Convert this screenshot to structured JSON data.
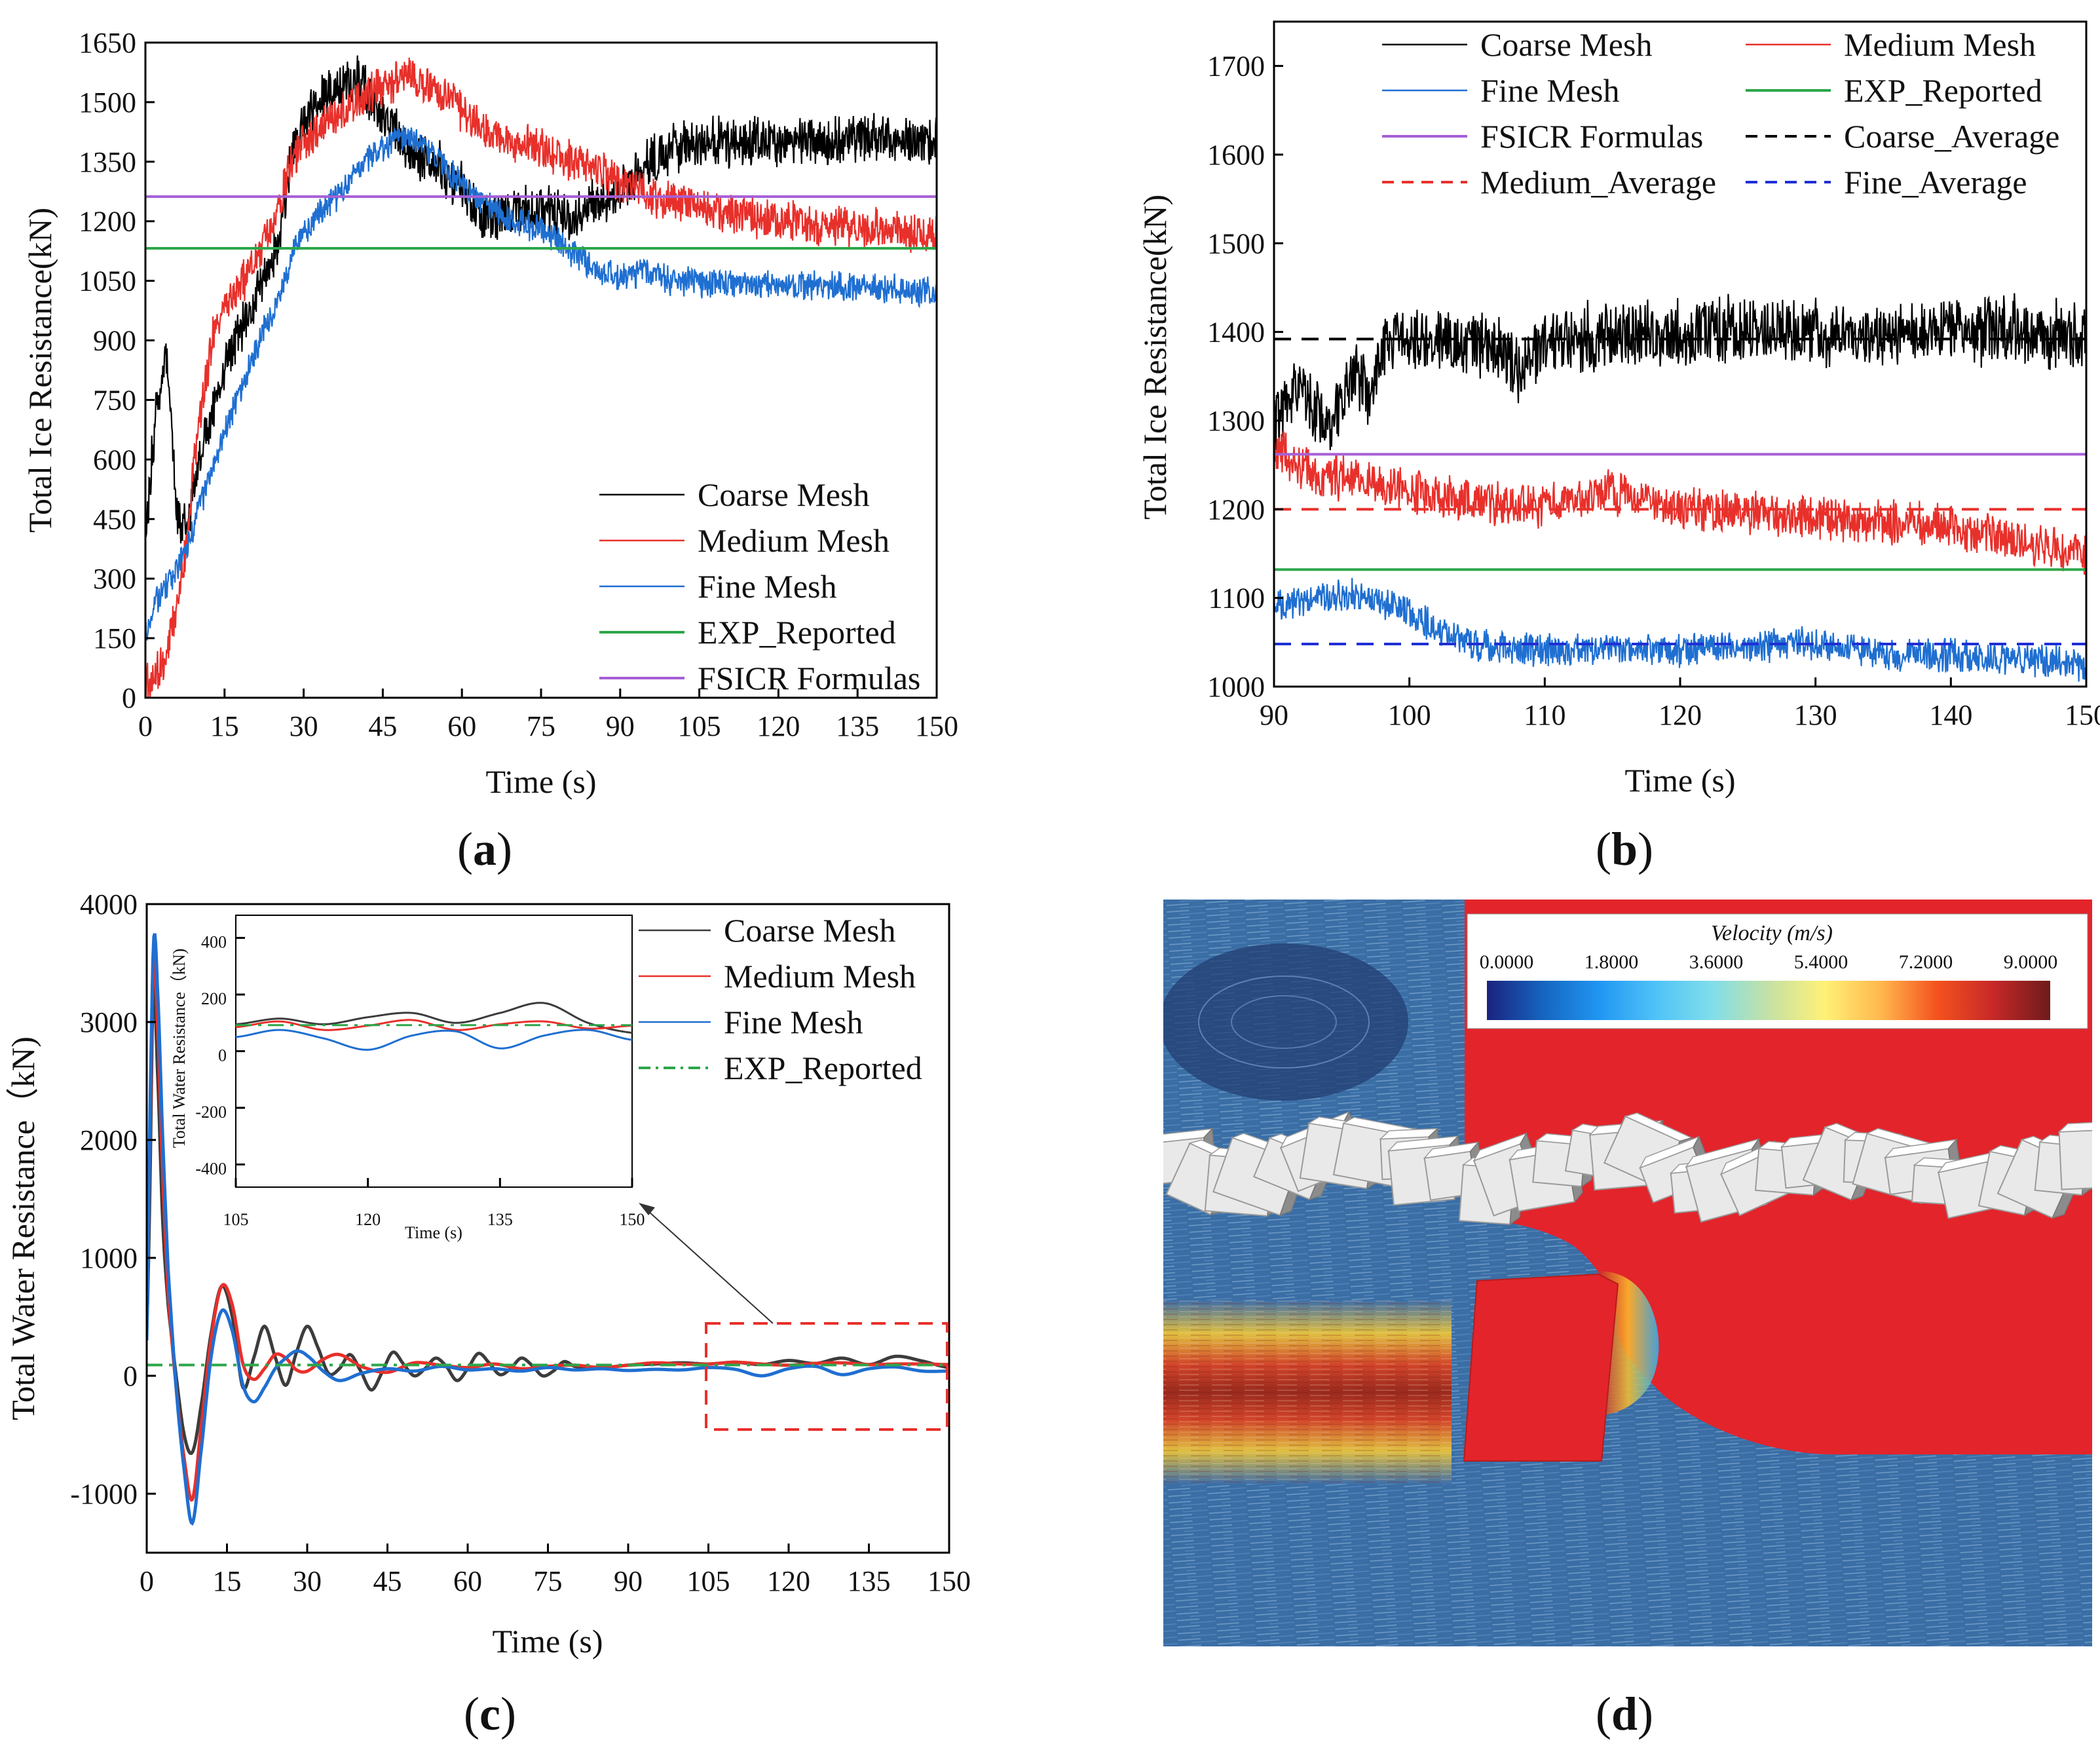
{
  "chart_data": [
    {
      "panel": "(a)",
      "type": "line",
      "xlabel": "Time (s)",
      "ylabel": "Total Ice Resistance(kN)",
      "xlim": [
        0,
        150
      ],
      "ylim": [
        0,
        1650
      ],
      "xticks": [
        0,
        15,
        30,
        45,
        60,
        75,
        90,
        105,
        120,
        135,
        150
      ],
      "yticks": [
        0,
        150,
        300,
        450,
        600,
        750,
        900,
        1050,
        1200,
        1350,
        1500,
        1650
      ],
      "legend_position": "bottom-right",
      "series": [
        {
          "name": "Coarse Mesh",
          "color": "#000000",
          "noise": 55,
          "x": [
            0,
            2,
            4,
            6,
            8,
            10,
            13,
            16,
            20,
            25,
            28,
            32,
            36,
            40,
            45,
            50,
            55,
            60,
            65,
            70,
            75,
            80,
            85,
            90,
            95,
            100,
            105,
            110,
            120,
            130,
            140,
            150
          ],
          "y": [
            400,
            720,
            880,
            450,
            420,
            600,
            740,
            870,
            980,
            1130,
            1390,
            1500,
            1530,
            1560,
            1450,
            1380,
            1350,
            1280,
            1200,
            1230,
            1240,
            1200,
            1240,
            1280,
            1340,
            1380,
            1400,
            1400,
            1405,
            1400,
            1410,
            1400
          ]
        },
        {
          "name": "Medium Mesh",
          "color": "#e8302b",
          "noise": 45,
          "x": [
            0,
            2,
            4,
            6,
            8,
            10,
            13,
            16,
            20,
            25,
            28,
            32,
            36,
            40,
            45,
            50,
            55,
            60,
            65,
            70,
            75,
            80,
            85,
            90,
            95,
            100,
            110,
            120,
            130,
            140,
            150
          ],
          "y": [
            30,
            60,
            110,
            220,
            420,
            680,
            920,
            1000,
            1080,
            1220,
            1360,
            1420,
            1470,
            1500,
            1540,
            1570,
            1530,
            1480,
            1420,
            1400,
            1380,
            1360,
            1330,
            1300,
            1270,
            1250,
            1220,
            1200,
            1190,
            1180,
            1160
          ]
        },
        {
          "name": "Fine Mesh",
          "color": "#1f6fd1",
          "noise": 32,
          "x": [
            0,
            2,
            4,
            6,
            8,
            10,
            13,
            16,
            20,
            25,
            28,
            32,
            36,
            40,
            45,
            48,
            52,
            56,
            60,
            65,
            70,
            75,
            80,
            85,
            90,
            95,
            100,
            110,
            120,
            130,
            140,
            150
          ],
          "y": [
            170,
            240,
            280,
            330,
            380,
            470,
            590,
            700,
            850,
            1000,
            1120,
            1210,
            1260,
            1320,
            1390,
            1410,
            1400,
            1350,
            1290,
            1240,
            1200,
            1180,
            1130,
            1080,
            1060,
            1070,
            1050,
            1040,
            1040,
            1040,
            1030,
            1020
          ]
        },
        {
          "name": "EXP_Reported",
          "color": "#2ca64a",
          "constant": 1132
        },
        {
          "name": "FSICR Formulas",
          "color": "#a65fd6",
          "constant": 1262
        }
      ]
    },
    {
      "panel": "(b)",
      "type": "line",
      "xlabel": "Time (s)",
      "ylabel": "Total Ice Resistance(kN)",
      "xlim": [
        90,
        150
      ],
      "ylim": [
        1000,
        1750
      ],
      "xticks": [
        90,
        100,
        110,
        120,
        130,
        140,
        150
      ],
      "xtick_labels": [
        "90",
        "100",
        "110",
        "120",
        "130",
        "140",
        "150"
      ],
      "yticks": [
        1000,
        1100,
        1200,
        1300,
        1400,
        1500,
        1600,
        1700
      ],
      "legend_position": "top",
      "series": [
        {
          "name": "Coarse Mesh",
          "color": "#000000",
          "noise": 34,
          "x": [
            90,
            91,
            92,
            93,
            94,
            95,
            96,
            97,
            98,
            100,
            102,
            104,
            106,
            108,
            110,
            115,
            120,
            125,
            130,
            135,
            140,
            145,
            150
          ],
          "y": [
            1290,
            1320,
            1350,
            1310,
            1290,
            1330,
            1350,
            1330,
            1380,
            1390,
            1400,
            1380,
            1390,
            1360,
            1390,
            1400,
            1395,
            1405,
            1400,
            1395,
            1405,
            1400,
            1395
          ]
        },
        {
          "name": "Medium Mesh",
          "color": "#e8302b",
          "noise": 22,
          "x": [
            90,
            92,
            94,
            96,
            98,
            100,
            102,
            105,
            110,
            115,
            120,
            125,
            130,
            135,
            140,
            145,
            150
          ],
          "y": [
            1270,
            1250,
            1235,
            1240,
            1230,
            1220,
            1215,
            1210,
            1205,
            1220,
            1200,
            1195,
            1190,
            1185,
            1180,
            1165,
            1150
          ]
        },
        {
          "name": "Fine Mesh",
          "color": "#1f6fd1",
          "noise": 16,
          "x": [
            90,
            92,
            94,
            96,
            98,
            100,
            102,
            104,
            106,
            110,
            115,
            120,
            125,
            130,
            135,
            140,
            145,
            150
          ],
          "y": [
            1090,
            1095,
            1100,
            1105,
            1095,
            1085,
            1065,
            1050,
            1045,
            1040,
            1045,
            1040,
            1045,
            1050,
            1035,
            1035,
            1030,
            1025
          ]
        },
        {
          "name": "EXP_Reported",
          "color": "#2ca64a",
          "constant": 1132
        },
        {
          "name": "FSICR Formulas",
          "color": "#a65fd6",
          "constant": 1262
        },
        {
          "name": "Coarse_Average",
          "color": "#000000",
          "dash": true,
          "constant": 1392
        },
        {
          "name": "Medium_Average",
          "color": "#e8302b",
          "dash": true,
          "constant": 1200
        },
        {
          "name": "Fine_Average",
          "color": "#1f2fd6",
          "dash": true,
          "constant": 1048
        }
      ]
    },
    {
      "panel": "(c)",
      "type": "line",
      "xlabel": "Time (s)",
      "ylabel": "Total Water Resistance（kN)",
      "xlim": [
        0,
        150
      ],
      "ylim": [
        -1500,
        4000
      ],
      "xticks": [
        0,
        15,
        30,
        45,
        60,
        75,
        90,
        105,
        120,
        135,
        150
      ],
      "yticks": [
        -1000,
        0,
        1000,
        2000,
        3000,
        4000
      ],
      "legend_position": "top-right",
      "series": [
        {
          "name": "Coarse Mesh",
          "color": "#3c3c3c",
          "x": [
            0,
            0.6,
            1.2,
            2,
            3,
            4,
            5.5,
            7,
            8.5,
            10,
            12,
            14,
            16,
            18,
            20,
            22,
            24,
            26,
            28,
            30,
            32,
            34,
            36,
            38,
            40,
            42,
            44,
            46,
            48,
            50,
            52,
            54,
            56,
            58,
            60,
            62,
            64,
            66,
            68,
            70,
            72,
            74,
            76,
            78,
            80,
            85,
            90,
            95,
            100,
            105,
            110,
            115,
            120,
            125,
            130,
            135,
            140,
            145,
            150
          ],
          "y": [
            400,
            1600,
            3300,
            2600,
            1300,
            600,
            0,
            -500,
            -650,
            -300,
            350,
            760,
            500,
            -100,
            150,
            420,
            160,
            -80,
            200,
            420,
            240,
            20,
            60,
            180,
            40,
            -120,
            30,
            200,
            100,
            0,
            60,
            150,
            80,
            -40,
            60,
            190,
            110,
            10,
            60,
            150,
            90,
            0,
            40,
            120,
            80,
            70,
            90,
            100,
            110,
            100,
            115,
            95,
            130,
            105,
            150,
            95,
            165,
            125,
            70
          ]
        },
        {
          "name": "Medium Mesh",
          "color": "#e8302b",
          "x": [
            0,
            0.6,
            1.2,
            2,
            3,
            4,
            5.5,
            7,
            8.5,
            10,
            12,
            14,
            16,
            18,
            20,
            22,
            24,
            26,
            28,
            30,
            33,
            36,
            40,
            45,
            50,
            55,
            60,
            65,
            70,
            75,
            80,
            85,
            90,
            95,
            100,
            105,
            110,
            115,
            120,
            125,
            130,
            135,
            140,
            145,
            150
          ],
          "y": [
            700,
            2000,
            3500,
            3000,
            1700,
            700,
            -100,
            -700,
            -1050,
            -500,
            300,
            760,
            600,
            100,
            -30,
            60,
            180,
            150,
            50,
            40,
            140,
            180,
            80,
            30,
            110,
            90,
            70,
            100,
            60,
            80,
            90,
            70,
            90,
            110,
            100,
            100,
            115,
            100,
            90,
            105,
            110,
            95,
            100,
            100,
            95
          ]
        },
        {
          "name": "Fine Mesh",
          "color": "#1f6fd1",
          "x": [
            0,
            0.6,
            1.3,
            2,
            3,
            4,
            5.5,
            7,
            8.5,
            10,
            12,
            14,
            16,
            18,
            20,
            22,
            24,
            26,
            28,
            30,
            33,
            36,
            40,
            45,
            50,
            55,
            60,
            65,
            70,
            75,
            80,
            85,
            90,
            95,
            100,
            105,
            110,
            115,
            120,
            125,
            130,
            135,
            140,
            145,
            150
          ],
          "y": [
            300,
            2200,
            3700,
            3300,
            2000,
            900,
            -100,
            -800,
            -1250,
            -700,
            150,
            550,
            380,
            -80,
            -220,
            -100,
            60,
            150,
            210,
            170,
            40,
            -40,
            20,
            60,
            40,
            80,
            50,
            60,
            40,
            70,
            50,
            60,
            45,
            55,
            50,
            70,
            55,
            0,
            60,
            80,
            10,
            60,
            75,
            40,
            40
          ]
        },
        {
          "name": "EXP_Reported",
          "color": "#2ca64a",
          "dashdot": true,
          "constant": 92
        }
      ],
      "inset": {
        "xlim": [
          105,
          150
        ],
        "ylim": [
          -480,
          480
        ],
        "xticks": [
          105,
          120,
          135,
          150
        ],
        "yticks": [
          -400,
          -200,
          0,
          200,
          400
        ],
        "xlabel": "Time (s)",
        "ylabel": "Total Water Resistance（kN)",
        "series": [
          {
            "color": "#3c3c3c",
            "x": [
              105,
              110,
              115,
              120,
              125,
              130,
              135,
              140,
              145,
              150
            ],
            "y": [
              95,
              115,
              95,
              120,
              135,
              100,
              135,
              170,
              100,
              65
            ]
          },
          {
            "color": "#e8302b",
            "x": [
              105,
              110,
              115,
              120,
              125,
              130,
              135,
              140,
              145,
              150
            ],
            "y": [
              85,
              105,
              75,
              90,
              110,
              75,
              95,
              105,
              80,
              90
            ]
          },
          {
            "color": "#1f6fd1",
            "x": [
              105,
              110,
              115,
              120,
              125,
              130,
              135,
              140,
              145,
              150
            ],
            "y": [
              50,
              75,
              45,
              5,
              55,
              70,
              10,
              55,
              75,
              40
            ]
          },
          {
            "color": "#2ca64a",
            "dashdot": true,
            "constant": 92
          }
        ]
      }
    }
  ],
  "panels": {
    "a": {
      "label_open": "(",
      "label_letter": "a",
      "label_close": ")"
    },
    "b": {
      "label_open": "(",
      "label_letter": "b",
      "label_close": ")"
    },
    "c": {
      "label_open": "(",
      "label_letter": "c",
      "label_close": ")"
    },
    "d": {
      "label_open": "(",
      "label_letter": "d",
      "label_close": ")"
    }
  },
  "colorbar": {
    "title": "Velocity (m/s)",
    "ticks": [
      "0.0000",
      "1.8000",
      "3.6000",
      "5.4000",
      "7.2000",
      "9.0000"
    ],
    "colors": [
      "#1a237e",
      "#1565c0",
      "#2196f3",
      "#4fc3f7",
      "#80deea",
      "#c5e1a5",
      "#fff176",
      "#ffb74d",
      "#f4511e",
      "#c62828",
      "#6d1b1b"
    ]
  }
}
